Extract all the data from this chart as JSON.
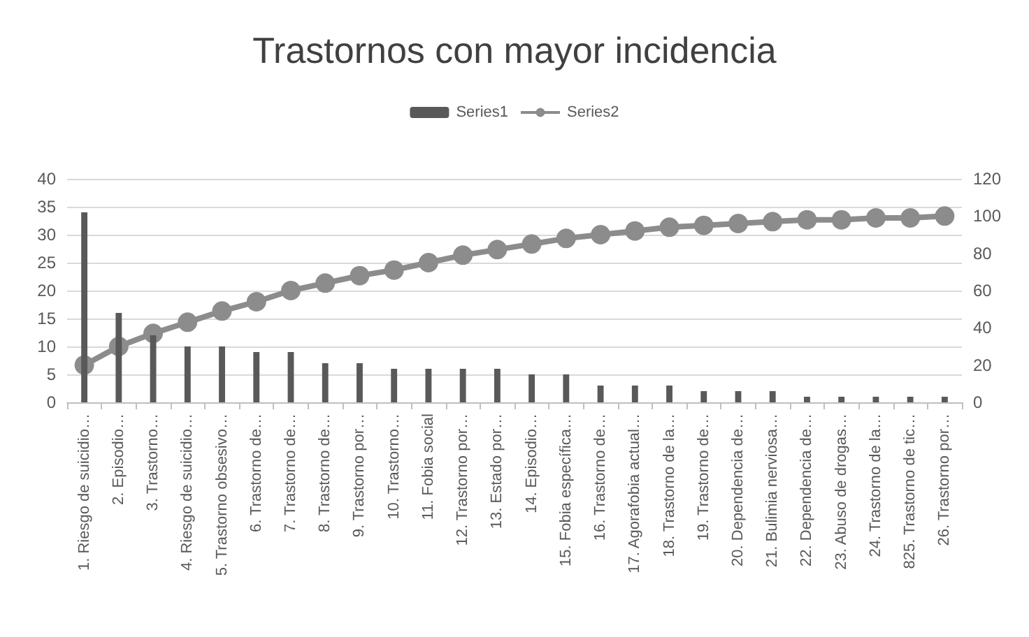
{
  "chart_data": {
    "type": "bar",
    "title": "Trastornos con mayor incidencia",
    "categories": [
      "1. Riesgo de suicidio…",
      "2. Episodio…",
      "3. Trastorno…",
      "4. Riesgo de suicidio…",
      "5. Trastorno obsesivo…",
      "6. Trastorno de…",
      "7. Trastorno de…",
      "8. Trastorno de…",
      "9. Trastorno por…",
      "10. Trastorno…",
      "11. Fobia social",
      "12. Trastorno por…",
      "13. Estado por…",
      "14. Episodio…",
      "15. Fobia específica…",
      "16. Trastorno de…",
      "17. Agorafobia actual…",
      "18. Trastorno de la…",
      "19. Trastorno de…",
      "20. Dependencia de…",
      "21. Bulimia nerviosa…",
      "22. Dependencia de…",
      "23. Abuso de drogas…",
      "24. Trastorno de la…",
      "825. Trastorno de tic…",
      "26. Trastorno por…"
    ],
    "series": [
      {
        "name": "Series1",
        "color": "#595959",
        "values": [
          34,
          16,
          12,
          10,
          10,
          9,
          9,
          7,
          7,
          6,
          6,
          6,
          6,
          5,
          5,
          3,
          3,
          3,
          2,
          2,
          2,
          1,
          1,
          1,
          1,
          1
        ]
      },
      {
        "name": "Series2",
        "type": "line",
        "axis": "y2",
        "color": "#8c8c8c",
        "values": [
          20,
          30,
          37,
          43,
          49,
          54,
          60,
          64,
          68,
          71,
          75,
          79,
          82,
          85,
          88,
          90,
          92,
          94,
          95,
          96,
          97,
          98,
          98,
          99,
          99,
          100
        ]
      }
    ],
    "ylim": [
      0,
      40
    ],
    "yticks": [
      0,
      5,
      10,
      15,
      20,
      25,
      30,
      35,
      40
    ],
    "y2lim": [
      0,
      120
    ],
    "y2ticks": [
      0,
      20,
      40,
      60,
      80,
      100,
      120
    ],
    "grid": "y",
    "legend": "top",
    "marker": "circle",
    "line_style": "solid"
  }
}
